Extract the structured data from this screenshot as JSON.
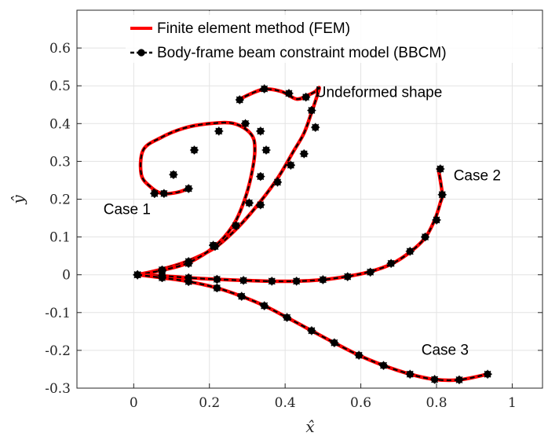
{
  "chart_data": {
    "type": "line",
    "xlabel": "x̂",
    "ylabel": "ŷ",
    "xlim": [
      -0.15,
      1.08
    ],
    "ylim": [
      -0.3,
      0.7
    ],
    "xticks": [
      0,
      0.2,
      0.4,
      0.6,
      0.8,
      1
    ],
    "xtick_labels": [
      "0",
      "0.2",
      "0.4",
      "0.6",
      "0.8",
      "1"
    ],
    "yticks": [
      -0.3,
      -0.2,
      -0.1,
      0,
      0.1,
      0.2,
      0.3,
      0.4,
      0.5,
      0.6
    ],
    "ytick_labels": [
      "-0.3",
      "-0.2",
      "-0.1",
      "0",
      "0.1",
      "0.2",
      "0.3",
      "0.4",
      "0.5",
      "0.6"
    ],
    "grid": true,
    "legend_position": "top-right",
    "legend": [
      {
        "label": "Finite element method (FEM)",
        "color": "#ff0000",
        "style": "line"
      },
      {
        "label": "Body-frame beam constraint model (BBCM)",
        "color": "#000000",
        "style": "dashed-marker"
      }
    ],
    "annotations": [
      {
        "text": "Undeformed shape",
        "x": 0.48,
        "y": 0.47
      },
      {
        "text": "Case 1",
        "x": -0.08,
        "y": 0.16
      },
      {
        "text": "Case 2",
        "x": 0.845,
        "y": 0.25
      },
      {
        "text": "Case 3",
        "x": 0.76,
        "y": -0.212
      }
    ],
    "series": [
      {
        "id": "undeformed",
        "x": [
          0.01,
          0.075,
          0.145,
          0.215,
          0.275,
          0.33,
          0.38,
          0.42,
          0.45,
          0.47,
          0.485,
          0.49,
          0.48,
          0.46,
          0.43,
          0.39,
          0.34,
          0.28
        ],
        "y": [
          0.0,
          0.015,
          0.037,
          0.072,
          0.125,
          0.188,
          0.255,
          0.323,
          0.375,
          0.43,
          0.475,
          0.495,
          0.485,
          0.475,
          0.465,
          0.485,
          0.49,
          0.465
        ],
        "markers_x": [
          0.01,
          0.075,
          0.145,
          0.21,
          0.27,
          0.335,
          0.38,
          0.415,
          0.45,
          0.48,
          0.47,
          0.455,
          0.41,
          0.345,
          0.28
        ],
        "markers_y": [
          0.0,
          0.013,
          0.035,
          0.078,
          0.13,
          0.185,
          0.245,
          0.29,
          0.32,
          0.39,
          0.435,
          0.47,
          0.48,
          0.492,
          0.463
        ]
      },
      {
        "id": "case1",
        "markers_x": [
          0.01,
          0.075,
          0.145,
          0.215,
          0.27,
          0.305,
          0.335,
          0.35,
          0.335,
          0.295,
          0.225,
          0.16,
          0.105,
          0.055,
          0.055,
          0.08,
          0.145
        ],
        "markers_y": [
          0.0,
          0.01,
          0.03,
          0.075,
          0.13,
          0.19,
          0.26,
          0.33,
          0.38,
          0.4,
          0.38,
          0.33,
          0.265,
          0.215,
          0.215,
          0.215,
          0.228
        ],
        "x": [
          0.01,
          0.075,
          0.145,
          0.215,
          0.262,
          0.29,
          0.31,
          0.32,
          0.31,
          0.265,
          0.2,
          0.133,
          0.07,
          0.025,
          0.02,
          0.045,
          0.075,
          0.115,
          0.145
        ],
        "y": [
          0.0,
          0.012,
          0.032,
          0.076,
          0.13,
          0.19,
          0.26,
          0.33,
          0.372,
          0.4,
          0.4,
          0.388,
          0.362,
          0.33,
          0.265,
          0.232,
          0.215,
          0.218,
          0.228
        ]
      },
      {
        "id": "case2",
        "x": [
          0.01,
          0.075,
          0.145,
          0.22,
          0.29,
          0.36,
          0.43,
          0.5,
          0.56,
          0.62,
          0.68,
          0.73,
          0.77,
          0.795,
          0.81,
          0.815,
          0.805
        ],
        "y": [
          0.0,
          -0.003,
          -0.008,
          -0.012,
          -0.015,
          -0.017,
          -0.017,
          -0.013,
          -0.005,
          0.007,
          0.028,
          0.06,
          0.098,
          0.145,
          0.19,
          0.215,
          0.28
        ],
        "markers_x": [
          0.01,
          0.075,
          0.145,
          0.22,
          0.29,
          0.365,
          0.43,
          0.5,
          0.565,
          0.625,
          0.68,
          0.73,
          0.77,
          0.8,
          0.815,
          0.81
        ],
        "markers_y": [
          0.0,
          -0.003,
          -0.008,
          -0.012,
          -0.015,
          -0.017,
          -0.017,
          -0.013,
          -0.005,
          0.007,
          0.03,
          0.062,
          0.1,
          0.145,
          0.212,
          0.28
        ]
      },
      {
        "id": "case3",
        "x": [
          0.01,
          0.075,
          0.145,
          0.22,
          0.285,
          0.345,
          0.405,
          0.47,
          0.53,
          0.595,
          0.66,
          0.73,
          0.795,
          0.86,
          0.935
        ],
        "y": [
          0.0,
          -0.008,
          -0.018,
          -0.035,
          -0.057,
          -0.082,
          -0.113,
          -0.148,
          -0.18,
          -0.213,
          -0.24,
          -0.263,
          -0.277,
          -0.278,
          -0.263
        ],
        "markers_x": [
          0.01,
          0.075,
          0.145,
          0.22,
          0.285,
          0.345,
          0.405,
          0.47,
          0.53,
          0.595,
          0.66,
          0.73,
          0.795,
          0.86,
          0.935
        ],
        "markers_y": [
          0.0,
          -0.008,
          -0.018,
          -0.035,
          -0.057,
          -0.082,
          -0.113,
          -0.148,
          -0.18,
          -0.213,
          -0.24,
          -0.263,
          -0.277,
          -0.278,
          -0.263
        ]
      }
    ]
  }
}
